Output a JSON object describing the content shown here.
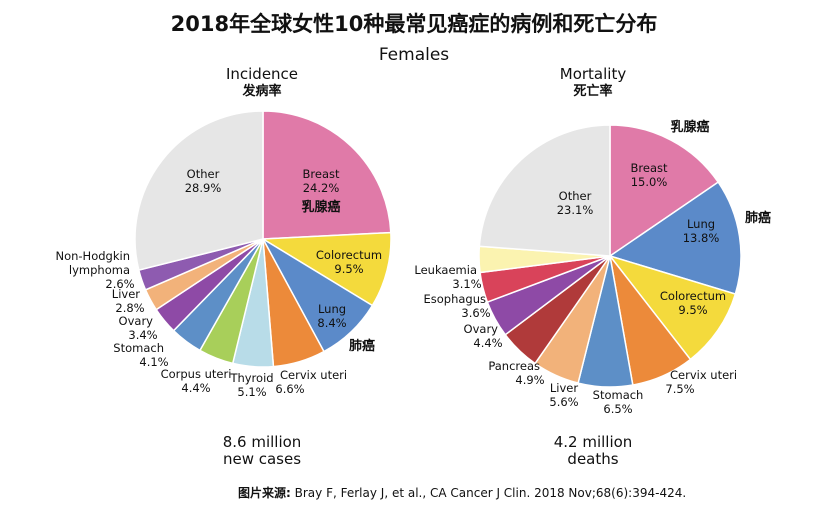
{
  "title": "2018年全球女性10种最常见癌症的病例和死亡分布",
  "subtitle": "Females",
  "source_label": "图片来源:",
  "source_text": "Bray F, Ferlay J, et al., CA Cancer J Clin. 2018 Nov;68(6):394-424.",
  "chart_data": [
    {
      "type": "pie",
      "title": "Incidence",
      "title_zh": "发病率",
      "summary_line1": "8.6 million",
      "summary_line2": "new cases",
      "slices": [
        {
          "label": "Breast",
          "value": 24.2,
          "display": "24.2%",
          "color": "#e07aa8",
          "label_zh": "乳腺癌"
        },
        {
          "label": "Colorectum",
          "value": 9.5,
          "display": "9.5%",
          "color": "#f4da3c"
        },
        {
          "label": "Lung",
          "value": 8.4,
          "display": "8.4%",
          "color": "#5b8ac9",
          "label_zh": "肺癌"
        },
        {
          "label": "Cervix uteri",
          "value": 6.6,
          "display": "6.6%",
          "color": "#ec8a3a"
        },
        {
          "label": "Thyroid",
          "value": 5.1,
          "display": "5.1%",
          "color": "#b8dce8"
        },
        {
          "label": "Corpus uteri",
          "value": 4.4,
          "display": "4.4%",
          "color": "#a8cf5a"
        },
        {
          "label": "Stomach",
          "value": 4.1,
          "display": "4.1%",
          "color": "#5d8fc7"
        },
        {
          "label": "Ovary",
          "value": 3.4,
          "display": "3.4%",
          "color": "#8e4aa6"
        },
        {
          "label": "Liver",
          "value": 2.8,
          "display": "2.8%",
          "color": "#f2b27a"
        },
        {
          "label": "Non-Hodgkin lymphoma",
          "value": 2.6,
          "display": "2.6%",
          "color": "#8e5bb0"
        },
        {
          "label": "Other",
          "value": 28.9,
          "display": "28.9%",
          "color": "#e6e6e6"
        }
      ]
    },
    {
      "type": "pie",
      "title": "Mortality",
      "title_zh": "死亡率",
      "summary_line1": "4.2 million",
      "summary_line2": "deaths",
      "slices": [
        {
          "label": "Breast",
          "value": 15.0,
          "display": "15.0%",
          "color": "#e07aa8",
          "label_zh": "乳腺癌"
        },
        {
          "label": "Lung",
          "value": 13.8,
          "display": "13.8%",
          "color": "#5b8ac9",
          "label_zh": "肺癌"
        },
        {
          "label": "Colorectum",
          "value": 9.5,
          "display": "9.5%",
          "color": "#f4da3c"
        },
        {
          "label": "Cervix uteri",
          "value": 7.5,
          "display": "7.5%",
          "color": "#ec8a3a"
        },
        {
          "label": "Stomach",
          "value": 6.5,
          "display": "6.5%",
          "color": "#5d8fc7"
        },
        {
          "label": "Liver",
          "value": 5.6,
          "display": "5.6%",
          "color": "#f2b27a"
        },
        {
          "label": "Pancreas",
          "value": 4.9,
          "display": "4.9%",
          "color": "#b03a3a"
        },
        {
          "label": "Ovary",
          "value": 4.4,
          "display": "4.4%",
          "color": "#8e4aa6"
        },
        {
          "label": "Esophagus",
          "value": 3.6,
          "display": "3.6%",
          "color": "#d9435a"
        },
        {
          "label": "Leukaemia",
          "value": 3.1,
          "display": "3.1%",
          "color": "#fbf3b0"
        },
        {
          "label": "Other",
          "value": 23.1,
          "display": "23.1%",
          "color": "#e6e6e6"
        }
      ]
    }
  ]
}
